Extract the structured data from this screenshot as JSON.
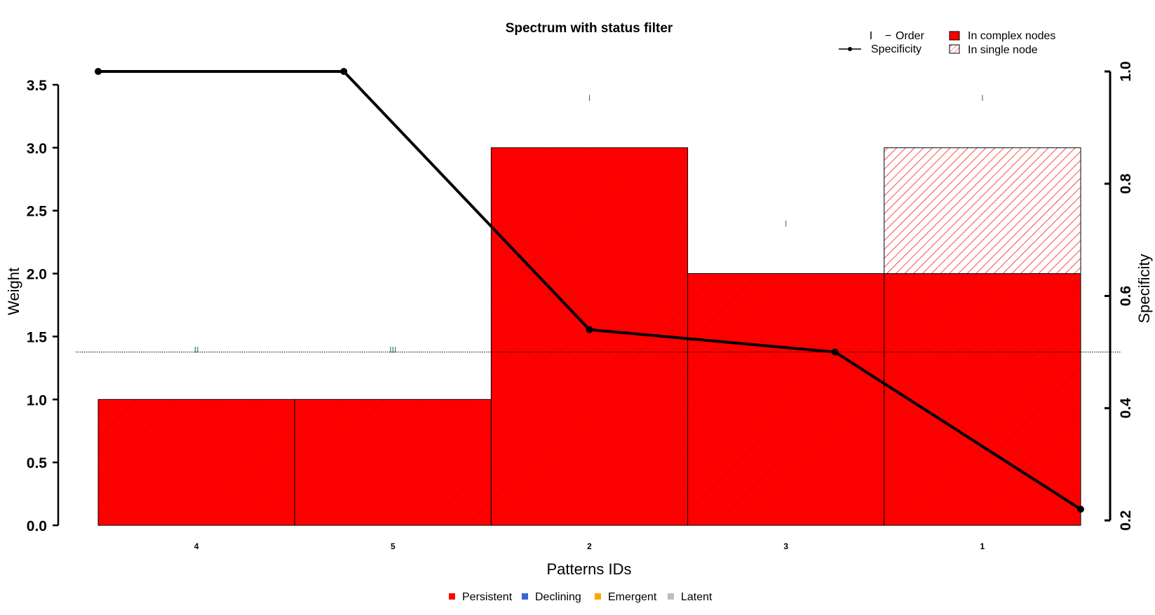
{
  "chart_data": {
    "type": "bar",
    "title": "Spectrum with status filter",
    "xlabel": "Patterns IDs",
    "ylabel": "Weight",
    "y2label": "Specificity",
    "categories": [
      "4",
      "5",
      "2",
      "3",
      "1"
    ],
    "ylim": [
      0,
      3.5
    ],
    "y_ticks": [
      "0.0",
      "0.5",
      "1.0",
      "1.5",
      "2.0",
      "2.5",
      "3.0",
      "3.5"
    ],
    "y2lim": [
      0.2,
      1.0
    ],
    "y2_ticks": [
      "0.2",
      "0.4",
      "0.6",
      "0.8",
      "1.0"
    ],
    "series": [
      {
        "name": "In complex nodes",
        "values": [
          1,
          1,
          3,
          2,
          2
        ],
        "color": "#ff0000"
      },
      {
        "name": "In single node",
        "values": [
          0,
          0,
          0,
          0,
          1
        ],
        "color": "#ff0000",
        "pattern": "hatched"
      }
    ],
    "specificity": {
      "name": "Specificity",
      "values": [
        1.0,
        1.0,
        0.54,
        0.5,
        0.22
      ],
      "x_positions": [
        0,
        1.25,
        2.5,
        3.75,
        5.0
      ],
      "threshold": 0.5
    },
    "order_marks": {
      "name": "Order",
      "glyphs": [
        "II",
        "III",
        "I",
        "I",
        "I"
      ],
      "weights": [
        1.4,
        1.4,
        3.4,
        2.4,
        3.4
      ],
      "color": "#2f6f7a"
    },
    "main_legend": {
      "placement": "top-right",
      "items": [
        {
          "symbol": "I",
          "label": "Order"
        },
        {
          "symbol": "line-point",
          "label": "Specificity"
        },
        {
          "symbol": "solid",
          "label": "In complex nodes"
        },
        {
          "symbol": "hatched",
          "label": "In single node"
        }
      ]
    },
    "status_legend": {
      "placement": "bottom",
      "items": [
        {
          "label": "Persistent",
          "color": "#ff0000"
        },
        {
          "label": "Declining",
          "color": "#3a64d8"
        },
        {
          "label": "Emergent",
          "color": "#ffa500"
        },
        {
          "label": "Latent",
          "color": "#bebebe"
        }
      ]
    }
  }
}
